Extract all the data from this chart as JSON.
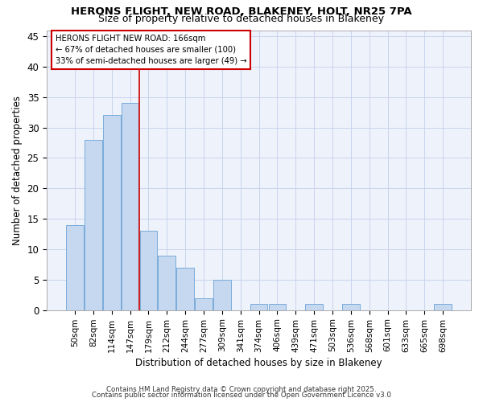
{
  "title1": "HERONS FLIGHT, NEW ROAD, BLAKENEY, HOLT, NR25 7PA",
  "title2": "Size of property relative to detached houses in Blakeney",
  "xlabel": "Distribution of detached houses by size in Blakeney",
  "ylabel": "Number of detached properties",
  "bar_color": "#c5d8f0",
  "bar_edge_color": "#7aacda",
  "bg_color": "#eef2fb",
  "grid_color": "#c8d4ee",
  "annotation_line_color": "#cc0000",
  "categories": [
    "50sqm",
    "82sqm",
    "114sqm",
    "147sqm",
    "179sqm",
    "212sqm",
    "244sqm",
    "277sqm",
    "309sqm",
    "341sqm",
    "374sqm",
    "406sqm",
    "439sqm",
    "471sqm",
    "503sqm",
    "536sqm",
    "568sqm",
    "601sqm",
    "633sqm",
    "665sqm",
    "698sqm"
  ],
  "values": [
    14,
    28,
    32,
    34,
    13,
    9,
    7,
    2,
    5,
    0,
    1,
    1,
    0,
    1,
    0,
    1,
    0,
    0,
    0,
    0,
    1
  ],
  "annotation_text": "HERONS FLIGHT NEW ROAD: 166sqm\n← 67% of detached houses are smaller (100)\n33% of semi-detached houses are larger (49) →",
  "annotation_box_color": "#ffffff",
  "annotation_border_color": "#cc0000",
  "footnote1": "Contains HM Land Registry data © Crown copyright and database right 2025.",
  "footnote2": "Contains public sector information licensed under the Open Government Licence v3.0",
  "ylim": [
    0,
    46
  ],
  "yticks": [
    0,
    5,
    10,
    15,
    20,
    25,
    30,
    35,
    40,
    45
  ],
  "red_line_x": 3.5
}
